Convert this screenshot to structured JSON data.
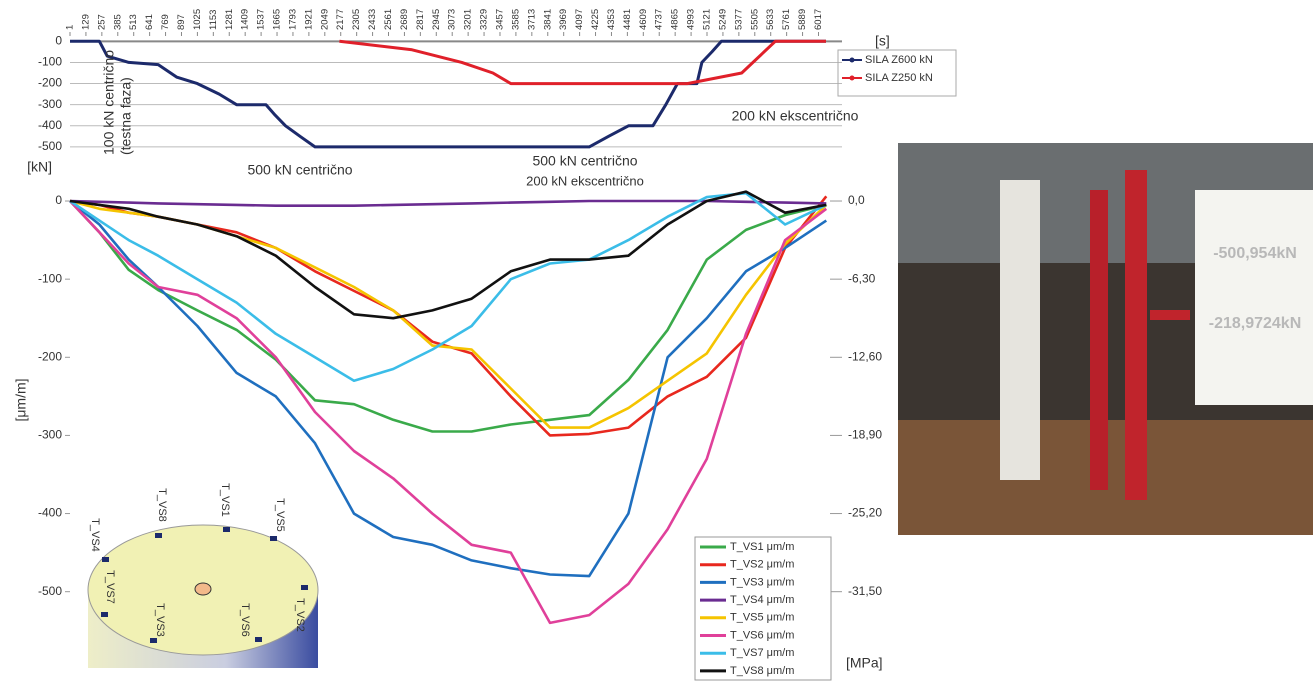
{
  "chart_data": [
    {
      "type": "line",
      "x_label": "[s]",
      "y_label": "[kN]",
      "legend": "right",
      "xlim": [
        1,
        6206
      ],
      "ylim": [
        -510,
        30
      ],
      "xticks": [
        1,
        129,
        257,
        385,
        513,
        641,
        769,
        897,
        1025,
        1153,
        1281,
        1409,
        1537,
        1665,
        1793,
        1921,
        2049,
        2177,
        2305,
        2433,
        2561,
        2689,
        2817,
        2945,
        3073,
        3201,
        3329,
        3457,
        3585,
        3713,
        3841,
        3969,
        4097,
        4225,
        4353,
        4481,
        4609,
        4737,
        4865,
        4993,
        5121,
        5249,
        5377,
        5505,
        5633,
        5761,
        5889,
        6017
      ],
      "yticks": [
        0,
        -100,
        -200,
        -300,
        -400,
        -500
      ],
      "grid": true,
      "annotations": [
        "100 kN centrično",
        "(testna faza)",
        "500 kN centrično",
        "500 kN centrično",
        "200 kN ekscentrično",
        "200 kN ekscentrično"
      ],
      "series": [
        {
          "name": "SILA Z600 kN",
          "color": "#1c2a6b",
          "x": [
            1,
            237,
            300,
            473,
            710,
            860,
            1025,
            1200,
            1340,
            1576,
            1650,
            1733,
            1850,
            1970,
            4174,
            4330,
            4490,
            4686,
            4790,
            4883,
            5040,
            5080,
            5160,
            5237,
            6077
          ],
          "values": [
            0,
            0,
            -70,
            -100,
            -110,
            -170,
            -200,
            -250,
            -300,
            -300,
            -350,
            -400,
            -450,
            -500,
            -500,
            -450,
            -400,
            -400,
            -300,
            -200,
            -200,
            -100,
            -50,
            0,
            0
          ]
        },
        {
          "name": "SILA Z250 kN",
          "color": "#e0202a",
          "x": [
            2166,
            2750,
            3150,
            3400,
            3544,
            4962,
            5400,
            5670,
            6077
          ],
          "values": [
            0,
            -40,
            -100,
            -150,
            -200,
            -200,
            -150,
            0,
            0
          ]
        }
      ]
    },
    {
      "type": "line",
      "y_label": "[μm/m]",
      "y2_label": "[MPa]",
      "legend": "lower right",
      "xlim": [
        1,
        6206
      ],
      "ylim": [
        -590,
        20
      ],
      "y2lim": [
        -37.17,
        1.26
      ],
      "yticks": [
        0,
        -100,
        -200,
        -300,
        -400,
        -500
      ],
      "y2ticks": [
        {
          "value": 0,
          "label": "0,0"
        },
        {
          "value": -6.3,
          "label": "-6,30"
        },
        {
          "value": -12.6,
          "label": "-12,60"
        },
        {
          "value": -18.9,
          "label": "-18,90"
        },
        {
          "value": -25.2,
          "label": "-25,20"
        },
        {
          "value": -31.5,
          "label": "-31,50"
        }
      ],
      "x": [
        1,
        237,
        473,
        710,
        1025,
        1340,
        1655,
        1970,
        2284,
        2599,
        2914,
        3229,
        3544,
        3859,
        4174,
        4489,
        4804,
        5119,
        5434,
        5749,
        6080
      ],
      "series": [
        {
          "name": "T_VS1 μm/m",
          "color": "#3aaa4a",
          "values": [
            0,
            -40,
            -88,
            -114,
            -140,
            -165,
            -203,
            -255,
            -260,
            -280,
            -295,
            -295,
            -286,
            -280,
            -274,
            -229,
            -165,
            -75,
            -37,
            -18,
            -5
          ]
        },
        {
          "name": "T_VS2 μm/m",
          "color": "#e8281e",
          "values": [
            0,
            -5,
            -15,
            -20,
            -30,
            -40,
            -60,
            -90,
            -115,
            -140,
            -180,
            -195,
            -250,
            -300,
            -298,
            -290,
            -250,
            -225,
            -175,
            -60,
            6
          ]
        },
        {
          "name": "T_VS3 μm/m",
          "color": "#1f6fbf",
          "values": [
            0,
            -30,
            -75,
            -110,
            -160,
            -220,
            -250,
            -310,
            -400,
            -430,
            -440,
            -460,
            -470,
            -478,
            -480,
            -400,
            -200,
            -150,
            -90,
            -60,
            -25
          ]
        },
        {
          "name": "T_VS4 μm/m",
          "color": "#6a2c91",
          "values": [
            0,
            -1,
            -2,
            -3,
            -4,
            -5,
            -6,
            -6,
            -6,
            -5,
            -4,
            -3,
            -2,
            -1,
            0,
            0,
            0,
            0,
            -1,
            -2,
            -3
          ]
        },
        {
          "name": "T_VS5 μm/m",
          "color": "#f5c400",
          "values": [
            0,
            -10,
            -15,
            -20,
            -30,
            -45,
            -60,
            -85,
            -110,
            -140,
            -185,
            -190,
            -240,
            -290,
            -290,
            -265,
            -230,
            -195,
            -120,
            -55,
            -5
          ]
        },
        {
          "name": "T_VS6 μm/m",
          "color": "#e0409a",
          "values": [
            0,
            -40,
            -80,
            -110,
            -120,
            -150,
            -200,
            -270,
            -320,
            -355,
            -400,
            -440,
            -450,
            -540,
            -530,
            -490,
            -420,
            -330,
            -170,
            -50,
            -10
          ]
        },
        {
          "name": "T_VS7 μm/m",
          "color": "#3bbde8",
          "values": [
            0,
            -25,
            -50,
            -70,
            -100,
            -130,
            -170,
            -200,
            -230,
            -215,
            -190,
            -160,
            -100,
            -80,
            -75,
            -50,
            -20,
            5,
            10,
            -30,
            -5
          ]
        },
        {
          "name": "T_VS8 μm/m",
          "color": "#111111",
          "values": [
            0,
            -5,
            -10,
            -20,
            -30,
            -45,
            -70,
            -110,
            -145,
            -150,
            -140,
            -125,
            -90,
            -75,
            -75,
            -70,
            -30,
            0,
            12,
            -15,
            -5
          ]
        }
      ]
    }
  ],
  "inset": {
    "labels": [
      "T_VS4",
      "T_VS8",
      "T_VS1",
      "T_VS5",
      "T_VS7",
      "T_VS3",
      "T_VS6",
      "T_VS2"
    ]
  },
  "photo": {
    "readouts": [
      "-500,954kN",
      "-218,9724kN"
    ]
  }
}
